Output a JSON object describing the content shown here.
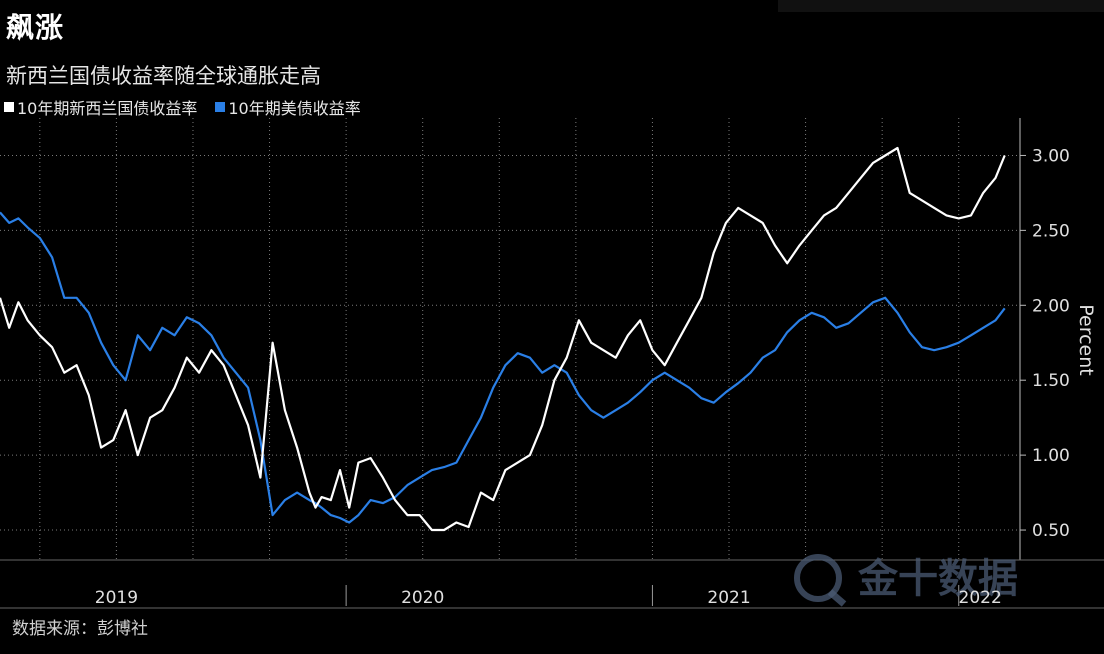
{
  "title": "飙涨",
  "subtitle": "新西兰国债收益率随全球通胀走高",
  "source": "数据来源：彭博社",
  "watermark": "金十数据",
  "colors": {
    "series_nz": "#ffffff",
    "series_us": "#2a7fe6",
    "grid": "#7a7a7a",
    "background": "#000000"
  },
  "chart_data": {
    "type": "line",
    "ylabel": "Percent",
    "ylim": [
      0.3,
      3.25
    ],
    "y_ticks": [
      0.5,
      1.0,
      1.5,
      2.0,
      2.5,
      3.0
    ],
    "y_tick_labels": [
      "0.50",
      "1.00",
      "1.50",
      "2.00",
      "2.50",
      "3.00"
    ],
    "x_range": [
      2018.87,
      2022.2
    ],
    "x_tick_labels": [
      {
        "label": "2019",
        "x": 2019.25
      },
      {
        "label": "2020",
        "x": 2020.25
      },
      {
        "label": "2021",
        "x": 2021.25
      },
      {
        "label": "2022",
        "x": 2022.07
      }
    ],
    "year_boundaries": [
      2020.0,
      2021.0,
      2022.0
    ],
    "legend_position": "top-left",
    "grid": true,
    "series": [
      {
        "name": "10年期新西兰国债收益率",
        "x": [
          2018.87,
          2018.9,
          2018.93,
          2018.96,
          2019.0,
          2019.04,
          2019.08,
          2019.12,
          2019.16,
          2019.2,
          2019.24,
          2019.28,
          2019.32,
          2019.36,
          2019.4,
          2019.44,
          2019.48,
          2019.52,
          2019.56,
          2019.6,
          2019.64,
          2019.68,
          2019.72,
          2019.76,
          2019.8,
          2019.84,
          2019.88,
          2019.9,
          2019.92,
          2019.95,
          2019.98,
          2020.01,
          2020.04,
          2020.08,
          2020.12,
          2020.16,
          2020.2,
          2020.24,
          2020.28,
          2020.32,
          2020.36,
          2020.4,
          2020.44,
          2020.48,
          2020.52,
          2020.56,
          2020.6,
          2020.64,
          2020.68,
          2020.72,
          2020.76,
          2020.8,
          2020.84,
          2020.88,
          2020.92,
          2020.96,
          2021.0,
          2021.04,
          2021.08,
          2021.12,
          2021.16,
          2021.2,
          2021.24,
          2021.28,
          2021.32,
          2021.36,
          2021.4,
          2021.44,
          2021.48,
          2021.52,
          2021.56,
          2021.6,
          2021.64,
          2021.68,
          2021.72,
          2021.76,
          2021.8,
          2021.84,
          2021.88,
          2021.92,
          2021.96,
          2022.0,
          2022.04,
          2022.08,
          2022.12,
          2022.15
        ],
        "values": [
          2.05,
          1.85,
          2.02,
          1.9,
          1.8,
          1.72,
          1.55,
          1.6,
          1.4,
          1.05,
          1.1,
          1.3,
          1.0,
          1.25,
          1.3,
          1.45,
          1.65,
          1.55,
          1.7,
          1.6,
          1.4,
          1.2,
          0.85,
          1.75,
          1.3,
          1.05,
          0.75,
          0.65,
          0.72,
          0.7,
          0.9,
          0.65,
          0.95,
          0.98,
          0.85,
          0.7,
          0.6,
          0.6,
          0.5,
          0.5,
          0.55,
          0.52,
          0.75,
          0.7,
          0.9,
          0.95,
          1.0,
          1.2,
          1.5,
          1.65,
          1.9,
          1.75,
          1.7,
          1.65,
          1.8,
          1.9,
          1.7,
          1.6,
          1.75,
          1.9,
          2.05,
          2.35,
          2.55,
          2.65,
          2.6,
          2.55,
          2.4,
          2.28,
          2.4,
          2.5,
          2.6,
          2.65,
          2.75,
          2.85,
          2.95,
          3.0,
          3.05,
          2.75,
          2.7,
          2.65,
          2.6,
          2.58,
          2.6,
          2.75,
          2.85,
          3.0
        ]
      },
      {
        "name": "10年期美债收益率",
        "x": [
          2018.87,
          2018.9,
          2018.93,
          2018.96,
          2019.0,
          2019.04,
          2019.08,
          2019.12,
          2019.16,
          2019.2,
          2019.24,
          2019.28,
          2019.32,
          2019.36,
          2019.4,
          2019.44,
          2019.48,
          2019.52,
          2019.56,
          2019.6,
          2019.64,
          2019.68,
          2019.72,
          2019.76,
          2019.8,
          2019.84,
          2019.88,
          2019.9,
          2019.92,
          2019.95,
          2019.98,
          2020.01,
          2020.04,
          2020.08,
          2020.12,
          2020.16,
          2020.2,
          2020.24,
          2020.28,
          2020.32,
          2020.36,
          2020.4,
          2020.44,
          2020.48,
          2020.52,
          2020.56,
          2020.6,
          2020.64,
          2020.68,
          2020.72,
          2020.76,
          2020.8,
          2020.84,
          2020.88,
          2020.92,
          2020.96,
          2021.0,
          2021.04,
          2021.08,
          2021.12,
          2021.16,
          2021.2,
          2021.24,
          2021.28,
          2021.32,
          2021.36,
          2021.4,
          2021.44,
          2021.48,
          2021.52,
          2021.56,
          2021.6,
          2021.64,
          2021.68,
          2021.72,
          2021.76,
          2021.8,
          2021.84,
          2021.88,
          2021.92,
          2021.96,
          2022.0,
          2022.04,
          2022.08,
          2022.12,
          2022.15
        ],
        "values": [
          2.62,
          2.55,
          2.58,
          2.52,
          2.45,
          2.32,
          2.05,
          2.05,
          1.95,
          1.75,
          1.6,
          1.5,
          1.8,
          1.7,
          1.85,
          1.8,
          1.92,
          1.88,
          1.8,
          1.65,
          1.55,
          1.45,
          1.1,
          0.6,
          0.7,
          0.75,
          0.7,
          0.68,
          0.65,
          0.6,
          0.58,
          0.55,
          0.6,
          0.7,
          0.68,
          0.72,
          0.8,
          0.85,
          0.9,
          0.92,
          0.95,
          1.1,
          1.25,
          1.45,
          1.6,
          1.68,
          1.65,
          1.55,
          1.6,
          1.55,
          1.4,
          1.3,
          1.25,
          1.3,
          1.35,
          1.42,
          1.5,
          1.55,
          1.5,
          1.45,
          1.38,
          1.35,
          1.42,
          1.48,
          1.55,
          1.65,
          1.7,
          1.82,
          1.9,
          1.95,
          1.92,
          1.85,
          1.88,
          1.95,
          2.02,
          2.05,
          1.95,
          1.82,
          1.72,
          1.7,
          1.72,
          1.75,
          1.8,
          1.85,
          1.9,
          1.98
        ]
      }
    ]
  },
  "legend": {
    "nz_label": "10年期新西兰国债收益率",
    "us_label": "10年期美债收益率"
  }
}
